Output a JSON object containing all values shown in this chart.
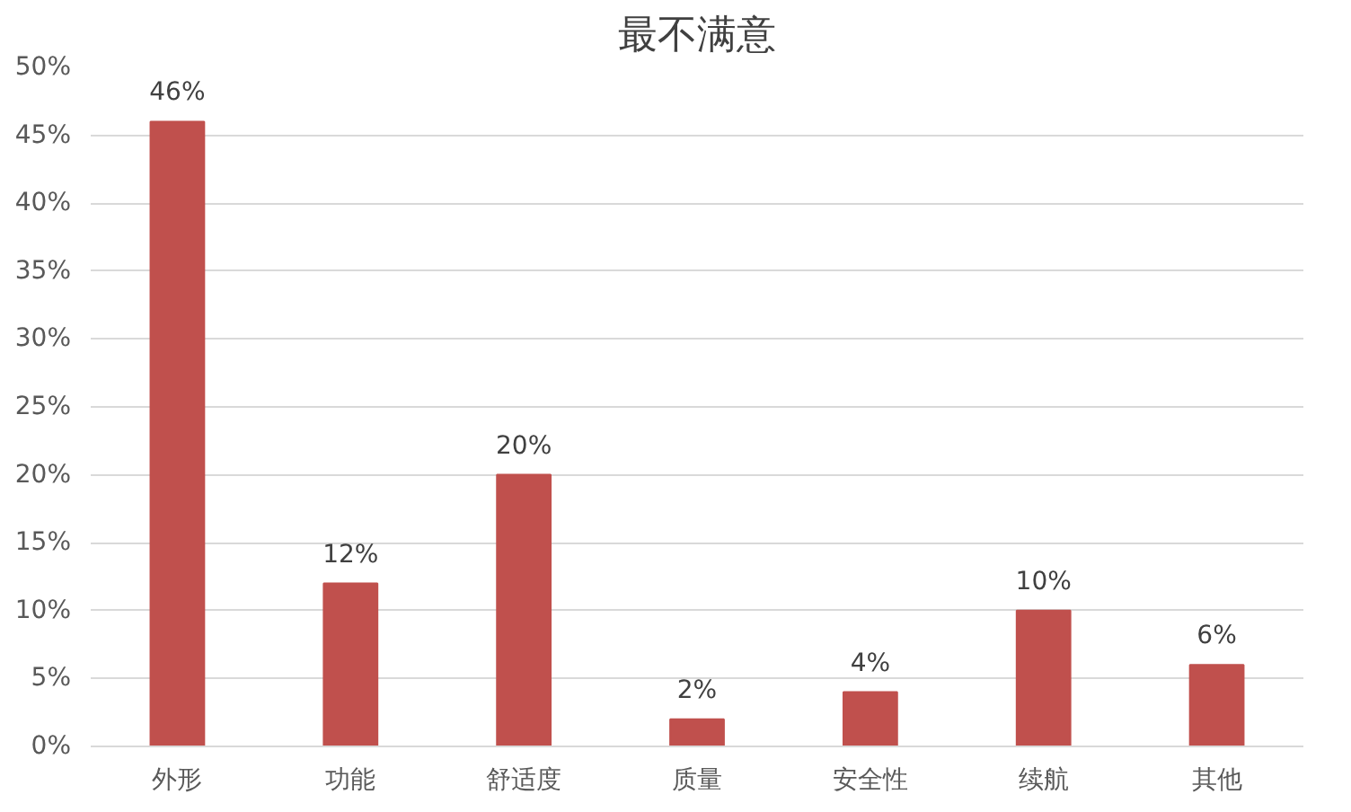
{
  "chart_data": {
    "type": "bar",
    "title": "最不满意",
    "categories": [
      "外形",
      "功能",
      "舒适度",
      "质量",
      "安全性",
      "续航",
      "其他"
    ],
    "values": [
      46,
      12,
      20,
      2,
      4,
      10,
      6
    ],
    "value_labels": [
      "46%",
      "12%",
      "20%",
      "2%",
      "4%",
      "10%",
      "6%"
    ],
    "color": "#c0504d",
    "ylim": [
      0,
      50
    ],
    "yticks": [
      {
        "value": 0,
        "label": "0%"
      },
      {
        "value": 5,
        "label": "5%"
      },
      {
        "value": 10,
        "label": "10%"
      },
      {
        "value": 15,
        "label": "15%"
      },
      {
        "value": 20,
        "label": "20%"
      },
      {
        "value": 25,
        "label": "25%"
      },
      {
        "value": 30,
        "label": "30%"
      },
      {
        "value": 35,
        "label": "35%"
      },
      {
        "value": 40,
        "label": "40%"
      },
      {
        "value": 45,
        "label": "45%"
      },
      {
        "value": 50,
        "label": "50%"
      }
    ],
    "grid": "y"
  }
}
